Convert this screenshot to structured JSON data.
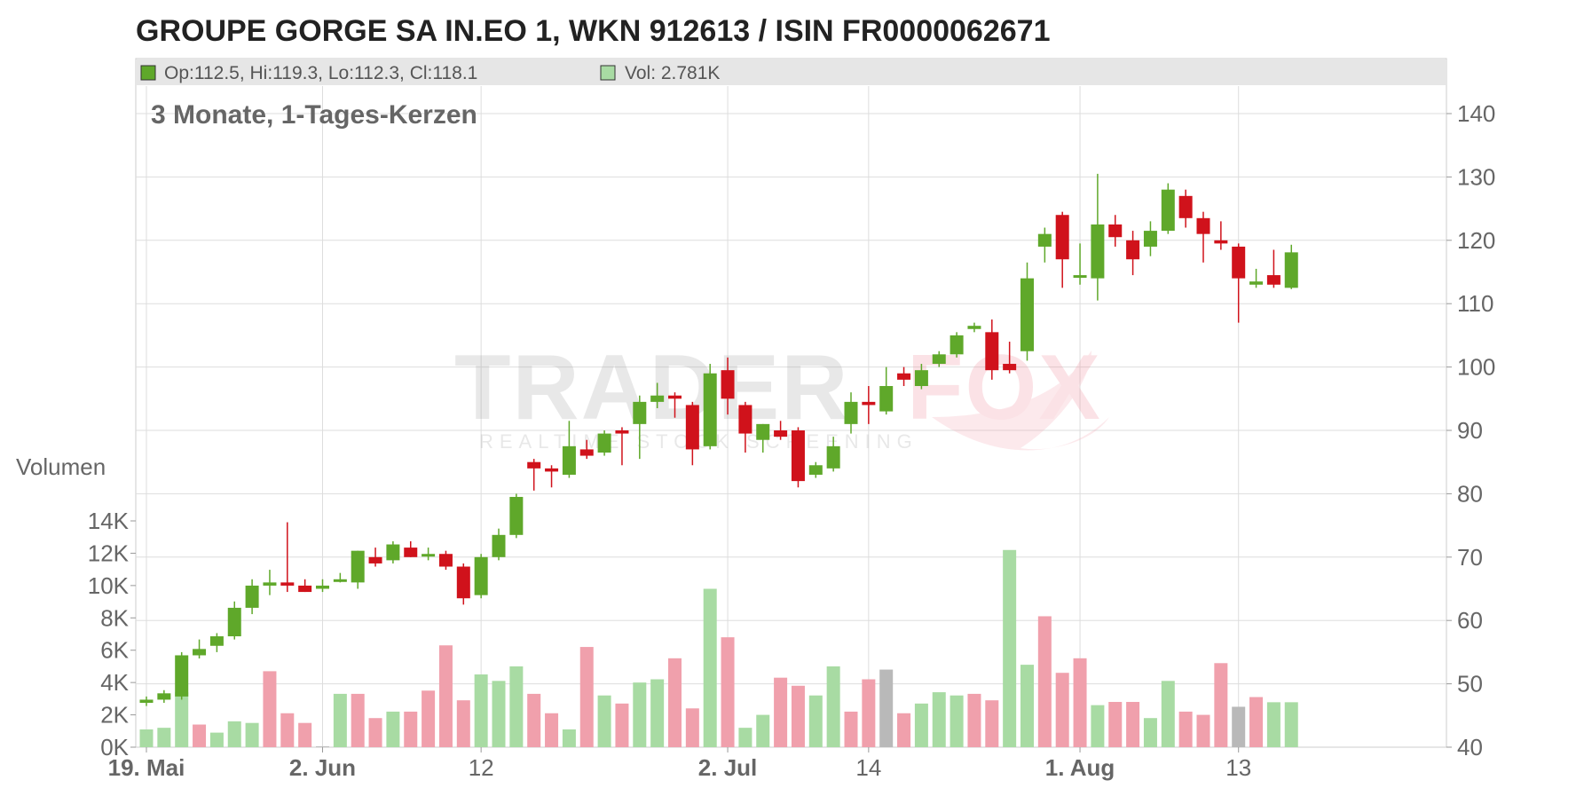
{
  "title": "GROUPE GORGE SA IN.EO 1, WKN 912613 / ISIN FR0000062671",
  "subtitle": "3 Monate, 1-Tages-Kerzen",
  "legend": {
    "ohlc": "Op:112.5, Hi:119.3, Lo:112.3, Cl:118.1",
    "volume": "Vol: 2.781K"
  },
  "watermark": {
    "brand_a": "TRADER",
    "brand_b": "FOX",
    "tagline": "REALTIME STOCK SCREENING"
  },
  "colors": {
    "up": "#5fa82a",
    "down": "#d0121b",
    "vol_up": "#a8dba3",
    "vol_down": "#f0a0ac",
    "vol_neutral": "#b9b9b9",
    "legend_bg": "#e6e6e6",
    "grid": "#dddddd"
  },
  "chart_data": {
    "type": "candlestick",
    "period": "3 Monate, 1-Tages-Kerzen",
    "price_axis": {
      "min": 40,
      "max": 145,
      "ticks": [
        40,
        50,
        60,
        70,
        80,
        90,
        100,
        110,
        120,
        130,
        140
      ]
    },
    "volume_axis": {
      "label": "Volumen",
      "min": 0,
      "max": 14000,
      "ticks": [
        0,
        2000,
        4000,
        6000,
        8000,
        10000,
        12000,
        14000
      ],
      "tick_labels": [
        "0K",
        "2K",
        "4K",
        "6K",
        "8K",
        "10K",
        "12K",
        "14K"
      ]
    },
    "x_labels": [
      {
        "index": 0,
        "text": "19. Mai",
        "bold": true
      },
      {
        "index": 10,
        "text": "2. Jun",
        "bold": true
      },
      {
        "index": 19,
        "text": "12",
        "bold": false
      },
      {
        "index": 33,
        "text": "2. Jul",
        "bold": true
      },
      {
        "index": 41,
        "text": "14",
        "bold": false
      },
      {
        "index": 53,
        "text": "1. Aug",
        "bold": true
      },
      {
        "index": 62,
        "text": "13",
        "bold": false
      }
    ],
    "candles": [
      {
        "o": 47,
        "h": 48,
        "l": 46.5,
        "c": 47.5,
        "v": 1100,
        "vc": "up"
      },
      {
        "o": 47.5,
        "h": 49,
        "l": 47,
        "c": 48.5,
        "v": 1200,
        "vc": "up"
      },
      {
        "o": 48,
        "h": 55,
        "l": 47.5,
        "c": 54.5,
        "v": 3400,
        "vc": "up"
      },
      {
        "o": 54.5,
        "h": 57,
        "l": 54,
        "c": 55.5,
        "v": 1400,
        "vc": "down"
      },
      {
        "o": 56,
        "h": 58,
        "l": 55,
        "c": 57.5,
        "v": 900,
        "vc": "up"
      },
      {
        "o": 57.5,
        "h": 63,
        "l": 57,
        "c": 62,
        "v": 1600,
        "vc": "up"
      },
      {
        "o": 62,
        "h": 66.5,
        "l": 61,
        "c": 65.5,
        "v": 1500,
        "vc": "up"
      },
      {
        "o": 65.5,
        "h": 68,
        "l": 64,
        "c": 66,
        "v": 4700,
        "vc": "down"
      },
      {
        "o": 66,
        "h": 75.5,
        "l": 64.5,
        "c": 65.5,
        "v": 2100,
        "vc": "down"
      },
      {
        "o": 65.5,
        "h": 66.5,
        "l": 64.5,
        "c": 64.5,
        "v": 1500,
        "vc": "down"
      },
      {
        "o": 65,
        "h": 66.5,
        "l": 64.5,
        "c": 65.5,
        "v": 50,
        "vc": "neutral"
      },
      {
        "o": 66.5,
        "h": 67.5,
        "l": 66,
        "c": 66.5,
        "v": 3300,
        "vc": "up"
      },
      {
        "o": 66,
        "h": 71,
        "l": 65,
        "c": 71,
        "v": 3300,
        "vc": "down"
      },
      {
        "o": 70,
        "h": 71.5,
        "l": 68.5,
        "c": 69,
        "v": 1800,
        "vc": "down"
      },
      {
        "o": 69.5,
        "h": 72.5,
        "l": 69,
        "c": 72,
        "v": 2200,
        "vc": "up"
      },
      {
        "o": 71.5,
        "h": 72.5,
        "l": 70,
        "c": 70,
        "v": 2200,
        "vc": "down"
      },
      {
        "o": 70.5,
        "h": 71.5,
        "l": 69.5,
        "c": 70.5,
        "v": 3500,
        "vc": "down"
      },
      {
        "o": 70.5,
        "h": 71,
        "l": 68,
        "c": 68.5,
        "v": 6300,
        "vc": "down"
      },
      {
        "o": 68.5,
        "h": 69,
        "l": 62.5,
        "c": 63.5,
        "v": 2900,
        "vc": "down"
      },
      {
        "o": 64,
        "h": 70.5,
        "l": 63.5,
        "c": 70,
        "v": 4500,
        "vc": "up"
      },
      {
        "o": 70,
        "h": 74.5,
        "l": 69.5,
        "c": 73.5,
        "v": 4100,
        "vc": "up"
      },
      {
        "o": 73.5,
        "h": 80,
        "l": 73,
        "c": 79.5,
        "v": 5000,
        "vc": "up"
      },
      {
        "o": 85,
        "h": 85.5,
        "l": 80.5,
        "c": 84,
        "v": 3300,
        "vc": "down"
      },
      {
        "o": 84,
        "h": 84.5,
        "l": 81,
        "c": 83.5,
        "v": 2100,
        "vc": "down"
      },
      {
        "o": 83,
        "h": 91.5,
        "l": 82.5,
        "c": 87.5,
        "v": 1100,
        "vc": "up"
      },
      {
        "o": 87,
        "h": 88.5,
        "l": 85.5,
        "c": 86,
        "v": 6200,
        "vc": "down"
      },
      {
        "o": 86.5,
        "h": 90,
        "l": 86,
        "c": 89.5,
        "v": 3200,
        "vc": "up"
      },
      {
        "o": 90,
        "h": 90.5,
        "l": 84.5,
        "c": 89.5,
        "v": 2700,
        "vc": "down"
      },
      {
        "o": 91,
        "h": 95.5,
        "l": 85.5,
        "c": 94.5,
        "v": 4000,
        "vc": "up"
      },
      {
        "o": 94.5,
        "h": 97.5,
        "l": 93.5,
        "c": 95.5,
        "v": 4200,
        "vc": "up"
      },
      {
        "o": 95.5,
        "h": 96,
        "l": 92,
        "c": 95,
        "v": 5500,
        "vc": "down"
      },
      {
        "o": 94,
        "h": 94.5,
        "l": 84.5,
        "c": 87,
        "v": 2400,
        "vc": "down"
      },
      {
        "o": 87.5,
        "h": 100.5,
        "l": 87,
        "c": 99,
        "v": 9800,
        "vc": "up"
      },
      {
        "o": 99.5,
        "h": 101.5,
        "l": 92.5,
        "c": 95,
        "v": 6800,
        "vc": "down"
      },
      {
        "o": 94,
        "h": 94.5,
        "l": 86.5,
        "c": 89.5,
        "v": 1200,
        "vc": "up"
      },
      {
        "o": 88.5,
        "h": 91,
        "l": 86.5,
        "c": 91,
        "v": 2000,
        "vc": "up"
      },
      {
        "o": 90,
        "h": 91.5,
        "l": 88.5,
        "c": 89,
        "v": 4300,
        "vc": "down"
      },
      {
        "o": 90,
        "h": 90.5,
        "l": 81,
        "c": 82,
        "v": 3800,
        "vc": "down"
      },
      {
        "o": 83,
        "h": 85,
        "l": 82.5,
        "c": 84.5,
        "v": 3200,
        "vc": "up"
      },
      {
        "o": 84,
        "h": 89,
        "l": 83.5,
        "c": 87.5,
        "v": 5000,
        "vc": "up"
      },
      {
        "o": 91,
        "h": 96,
        "l": 89.5,
        "c": 94.5,
        "v": 2200,
        "vc": "down"
      },
      {
        "o": 94.5,
        "h": 97,
        "l": 91,
        "c": 94,
        "v": 4200,
        "vc": "down"
      },
      {
        "o": 93,
        "h": 100,
        "l": 92.5,
        "c": 97,
        "v": 4800,
        "vc": "neutral"
      },
      {
        "o": 99,
        "h": 100,
        "l": 97,
        "c": 98,
        "v": 2100,
        "vc": "down"
      },
      {
        "o": 97,
        "h": 100.5,
        "l": 96.5,
        "c": 99.5,
        "v": 2700,
        "vc": "up"
      },
      {
        "o": 100.5,
        "h": 102.5,
        "l": 100,
        "c": 102,
        "v": 3400,
        "vc": "up"
      },
      {
        "o": 102,
        "h": 105.5,
        "l": 101.5,
        "c": 105,
        "v": 3200,
        "vc": "up"
      },
      {
        "o": 106,
        "h": 107,
        "l": 105.5,
        "c": 106.5,
        "v": 3300,
        "vc": "down"
      },
      {
        "o": 105.5,
        "h": 107.5,
        "l": 98,
        "c": 99.5,
        "v": 2900,
        "vc": "down"
      },
      {
        "o": 100.5,
        "h": 104,
        "l": 99,
        "c": 99.5,
        "v": 12200,
        "vc": "up"
      },
      {
        "o": 102.5,
        "h": 116.5,
        "l": 101,
        "c": 114,
        "v": 5100,
        "vc": "up"
      },
      {
        "o": 119,
        "h": 122,
        "l": 116.5,
        "c": 121,
        "v": 8100,
        "vc": "down"
      },
      {
        "o": 124,
        "h": 124.5,
        "l": 112.5,
        "c": 117,
        "v": 4600,
        "vc": "down"
      },
      {
        "o": 114.5,
        "h": 119.5,
        "l": 113,
        "c": 114.5,
        "v": 5500,
        "vc": "down"
      },
      {
        "o": 114,
        "h": 130.5,
        "l": 110.5,
        "c": 122.5,
        "v": 2600,
        "vc": "up"
      },
      {
        "o": 122.5,
        "h": 124,
        "l": 119,
        "c": 120.5,
        "v": 2800,
        "vc": "down"
      },
      {
        "o": 120,
        "h": 121.5,
        "l": 114.5,
        "c": 117,
        "v": 2800,
        "vc": "down"
      },
      {
        "o": 119,
        "h": 123,
        "l": 117.5,
        "c": 121.5,
        "v": 1800,
        "vc": "up"
      },
      {
        "o": 121.5,
        "h": 129,
        "l": 121,
        "c": 128,
        "v": 4100,
        "vc": "up"
      },
      {
        "o": 127,
        "h": 128,
        "l": 122,
        "c": 123.5,
        "v": 2200,
        "vc": "down"
      },
      {
        "o": 123.5,
        "h": 124.5,
        "l": 116.5,
        "c": 121,
        "v": 2000,
        "vc": "down"
      },
      {
        "o": 120,
        "h": 123,
        "l": 118.5,
        "c": 119.5,
        "v": 5200,
        "vc": "down"
      },
      {
        "o": 119,
        "h": 119.5,
        "l": 107,
        "c": 114,
        "v": 2500,
        "vc": "neutral"
      },
      {
        "o": 113,
        "h": 115.5,
        "l": 112.5,
        "c": 113.5,
        "v": 3100,
        "vc": "down"
      },
      {
        "o": 114.5,
        "h": 118.5,
        "l": 112.5,
        "c": 113,
        "v": 2781,
        "vc": "up"
      },
      {
        "o": 112.5,
        "h": 119.3,
        "l": 112.3,
        "c": 118.1,
        "v": 2781,
        "vc": "up"
      }
    ]
  }
}
